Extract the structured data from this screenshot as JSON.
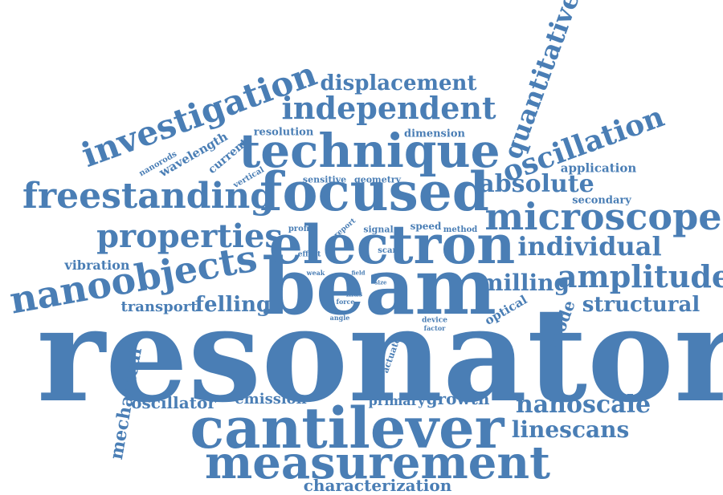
{
  "cloud": {
    "color": "#4a7eb5",
    "words": {
      "resonator": "resonator",
      "beam": "beam",
      "electron": "electron",
      "focused": "focused",
      "technique": "technique",
      "cantilever": "cantilever",
      "measurement": "measurement",
      "microscope": "microscope",
      "nanoobjects": "nanoobjects",
      "freestanding": "freestanding",
      "investigation": "investigation",
      "independent": "independent",
      "properties": "properties",
      "amplitude": "amplitude",
      "oscillation": "oscillation",
      "quantitative": "quantitative",
      "displacement": "displacement",
      "absolute": "absolute",
      "individual": "individual",
      "structural": "structural",
      "nanoscale": "nanoscale",
      "linescans": "linescans",
      "milling": "milling",
      "felling": "felling",
      "characterization": "characterization",
      "mechanical": "mechanical",
      "oscillator": "oscillator",
      "emission": "emission",
      "primary": "primary",
      "growth": "growth",
      "transport": "transport",
      "vibration": "vibration",
      "application": "application",
      "secondary": "secondary",
      "mode": "mode",
      "optical": "optical",
      "resolution": "resolution",
      "dimension": "dimension",
      "wavelength": "wavelength",
      "current": "current",
      "nanorods": "nanorods",
      "vertical": "vertical",
      "sensitive": "sensitive",
      "geometry": "geometry",
      "profile": "profile",
      "report": "report",
      "signal": "signal",
      "speed": "speed",
      "method": "method",
      "effect": "effect",
      "scan": "scan",
      "weak": "weak",
      "field": "field",
      "size": "size",
      "mas": "mas",
      "force": "force",
      "angle": "angle",
      "device": "device",
      "factor": "factor",
      "actuator": "actuator"
    }
  }
}
